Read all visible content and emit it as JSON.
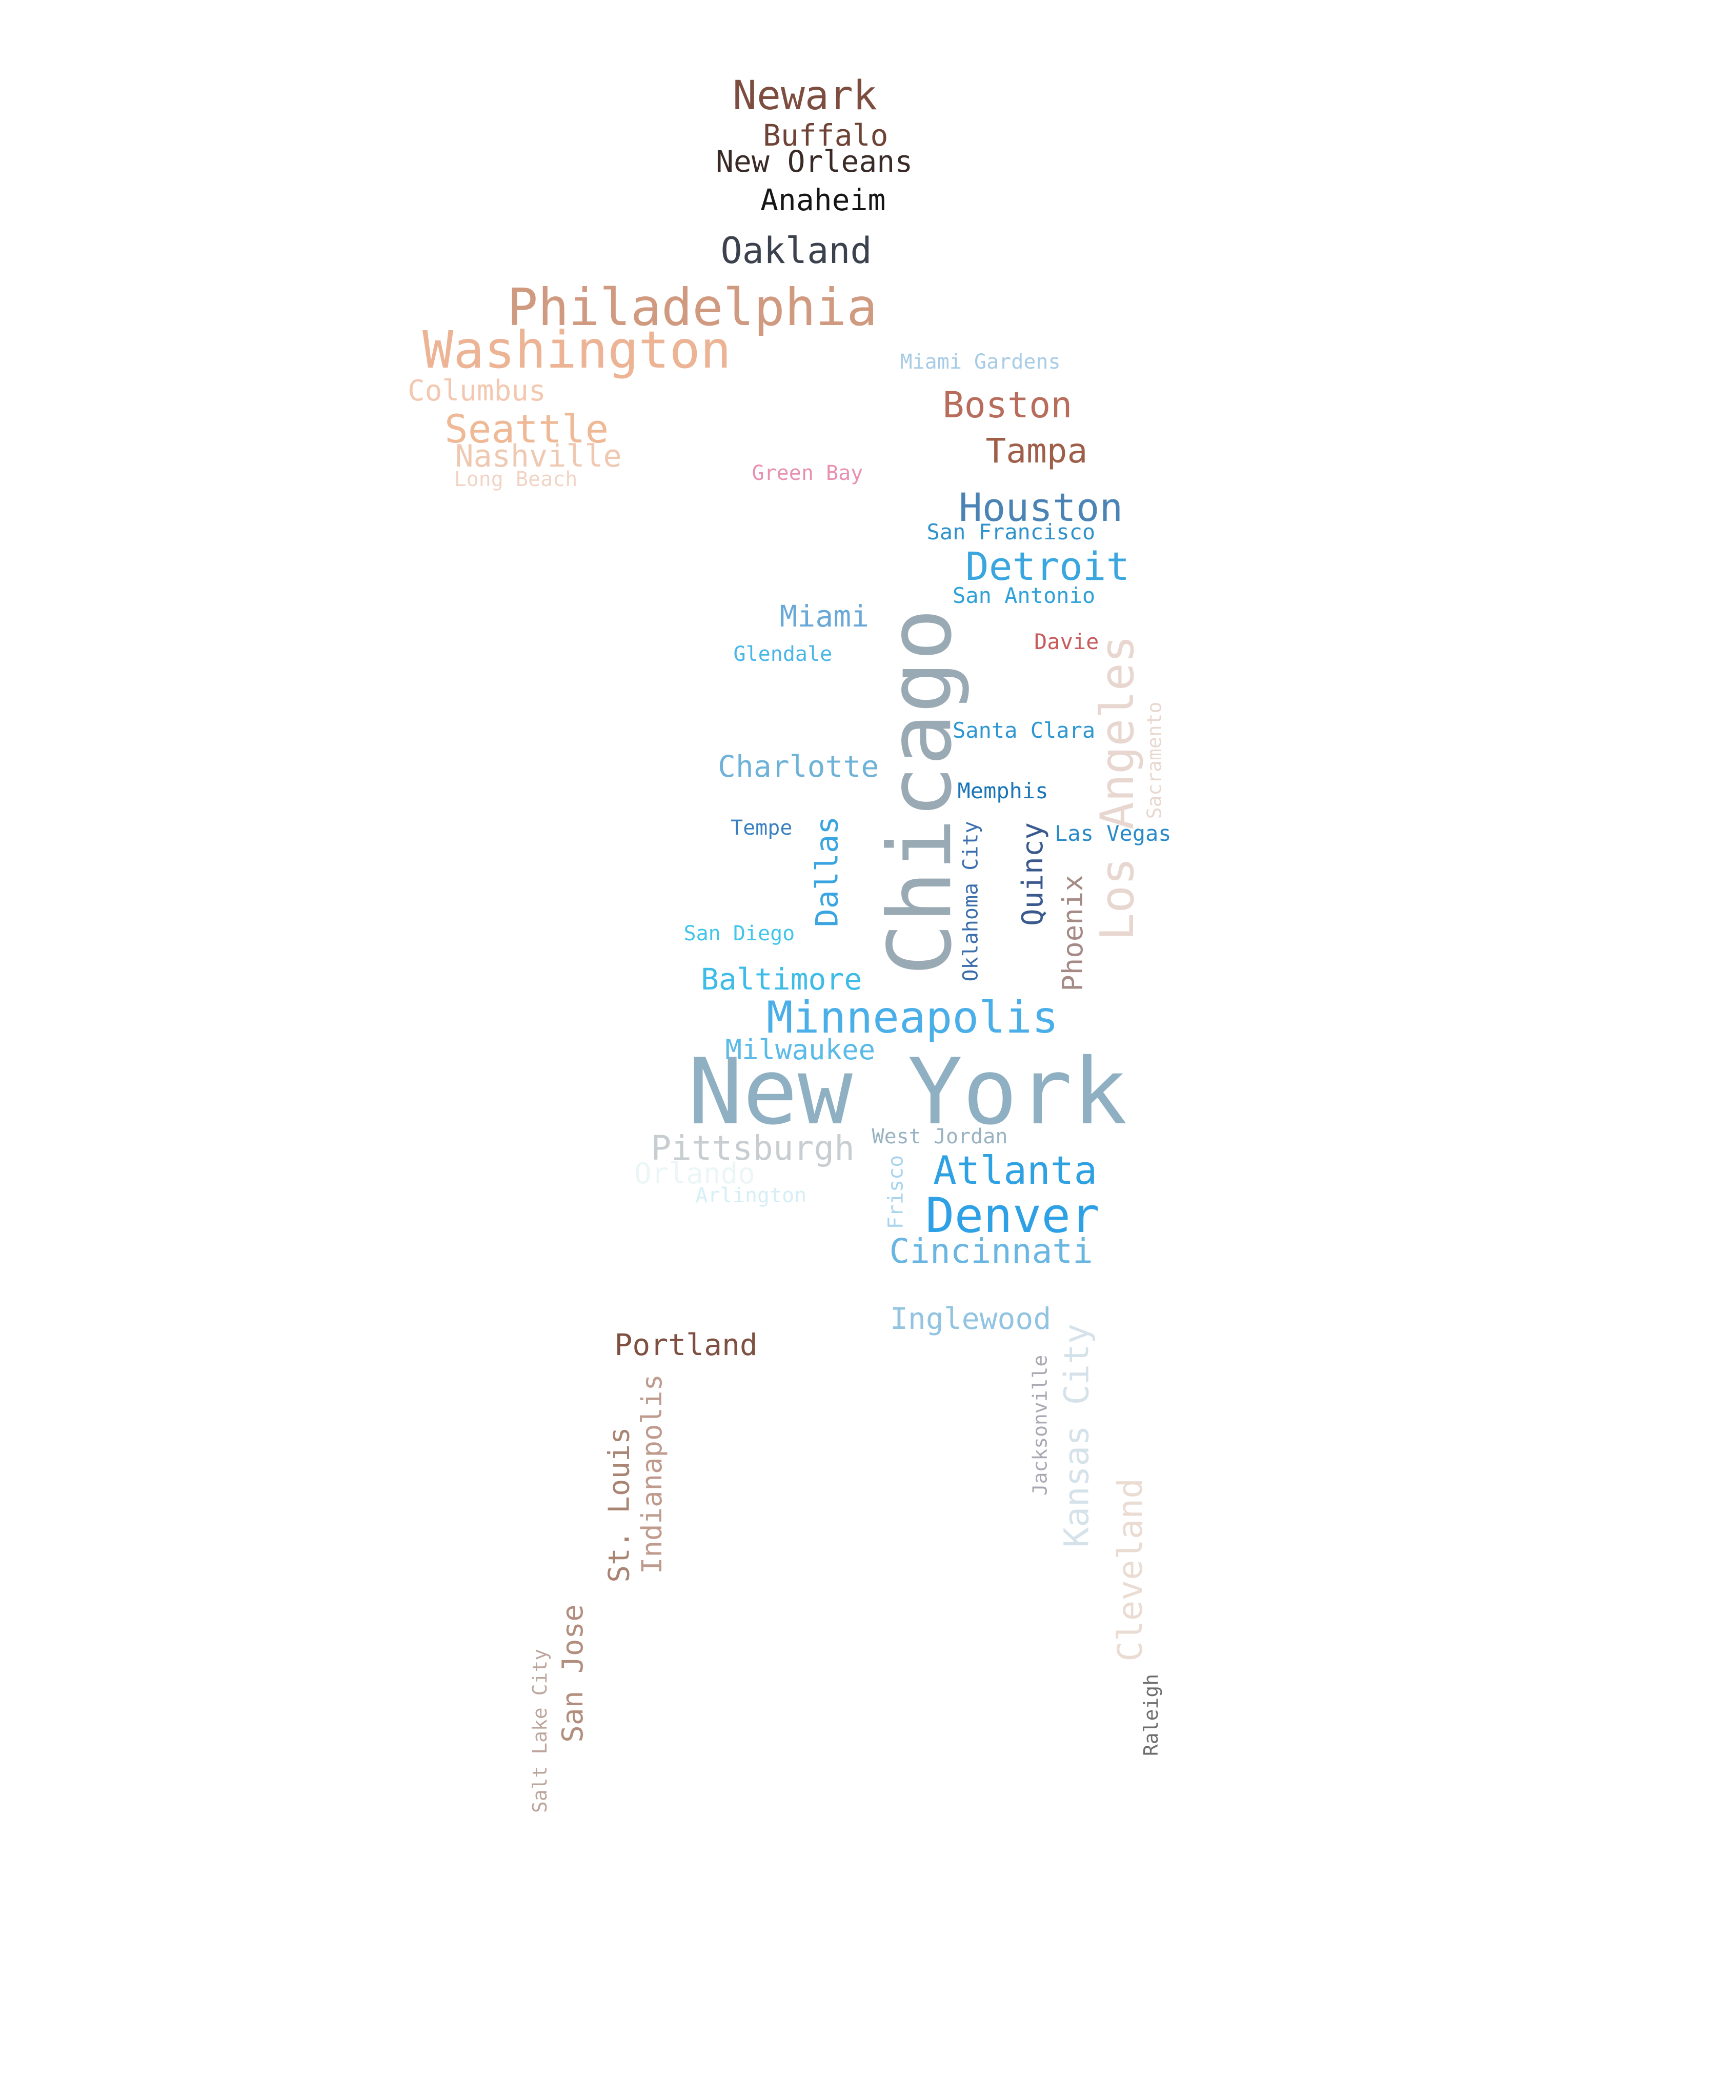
{
  "words": [
    {
      "text": "New York",
      "color": "#8fb0c2",
      "rot": 0
    },
    {
      "text": "Chicago",
      "color": "#9aaab4",
      "rot": -90
    },
    {
      "text": "Philadelphia",
      "color": "#d09a80",
      "rot": 0
    },
    {
      "text": "Washington",
      "color": "#ecb394",
      "rot": 0
    },
    {
      "text": "Los Angeles",
      "color": "#e8d7d0",
      "rot": -90
    },
    {
      "text": "Minneapolis",
      "color": "#4aaee8",
      "rot": 0
    },
    {
      "text": "Denver",
      "color": "#2ea1e6",
      "rot": 0
    },
    {
      "text": "Newark",
      "color": "#7d4e40",
      "rot": 0
    },
    {
      "text": "Houston",
      "color": "#4b84b4",
      "rot": 0
    },
    {
      "text": "Detroit",
      "color": "#3aa6e0",
      "rot": 0
    },
    {
      "text": "Atlanta",
      "color": "#2ea1e2",
      "rot": 0
    },
    {
      "text": "Oakland",
      "color": "#3c414e",
      "rot": 0
    },
    {
      "text": "Seattle",
      "color": "#efb996",
      "rot": 0
    },
    {
      "text": "Boston",
      "color": "#b86d5c",
      "rot": 0
    },
    {
      "text": "Cincinnati",
      "color": "#6ab6e2",
      "rot": 0
    },
    {
      "text": "Pittsburgh",
      "color": "#c7cdd0",
      "rot": 0
    },
    {
      "text": "Kansas City",
      "color": "#d6e2ea",
      "rot": -90
    },
    {
      "text": "Cleveland",
      "color": "#eadcd2",
      "rot": -90
    },
    {
      "text": "Tampa",
      "color": "#9e5e48",
      "rot": 0
    },
    {
      "text": "Charlotte",
      "color": "#6eb2d8",
      "rot": 0
    },
    {
      "text": "Baltimore",
      "color": "#3dbce8",
      "rot": 0
    },
    {
      "text": "Portland",
      "color": "#7e5042",
      "rot": 0
    },
    {
      "text": "Inglewood",
      "color": "#92c4e2",
      "rot": 0
    },
    {
      "text": "Dallas",
      "color": "#3aa5e0",
      "rot": -90
    },
    {
      "text": "Miami",
      "color": "#6aa8d8",
      "rot": 0
    },
    {
      "text": "Buffalo",
      "color": "#6e4234",
      "rot": 0
    },
    {
      "text": "New Orleans",
      "color": "#3a2a26",
      "rot": 0
    },
    {
      "text": "Anaheim",
      "color": "#151515",
      "rot": 0
    },
    {
      "text": "Milwaukee",
      "color": "#5abae8",
      "rot": 0
    },
    {
      "text": "Quincy",
      "color": "#3a5a8e",
      "rot": -90
    },
    {
      "text": "Phoenix",
      "color": "#a58a86",
      "rot": -90
    },
    {
      "text": "Indianapolis",
      "color": "#bf9b8e",
      "rot": -90
    },
    {
      "text": "St. Louis",
      "color": "#aa8472",
      "rot": -90
    },
    {
      "text": "San Jose",
      "color": "#b28e7e",
      "rot": -90
    },
    {
      "text": "Nashville",
      "color": "#efc8b2",
      "rot": 0
    },
    {
      "text": "Columbus",
      "color": "#f2c8b0",
      "rot": 0
    },
    {
      "text": "Orlando",
      "color": "#ecf6f6",
      "rot": 0
    },
    {
      "text": "San Francisco",
      "color": "#2e92cc",
      "rot": 0
    },
    {
      "text": "San Antonio",
      "color": "#2ea0d8",
      "rot": 0
    },
    {
      "text": "Santa Clara",
      "color": "#2e96d0",
      "rot": 0
    },
    {
      "text": "Memphis",
      "color": "#1a74b8",
      "rot": 0
    },
    {
      "text": "Las Vegas",
      "color": "#2a8ac8",
      "rot": 0
    },
    {
      "text": "Glendale",
      "color": "#48b6e6",
      "rot": 0
    },
    {
      "text": "Davie",
      "color": "#c65a5a",
      "rot": 0
    },
    {
      "text": "Tempe",
      "color": "#3a80c0",
      "rot": 0
    },
    {
      "text": "San Diego",
      "color": "#40c4ea",
      "rot": 0
    },
    {
      "text": "West Jordan",
      "color": "#98b2c2",
      "rot": 0
    },
    {
      "text": "Arlington",
      "color": "#d6eef6",
      "rot": 0
    },
    {
      "text": "Oklahoma City",
      "color": "#3a6eac",
      "rot": -90
    },
    {
      "text": "Sacramento",
      "color": "#e8d8d0",
      "rot": -90
    },
    {
      "text": "Miami Gardens",
      "color": "#a8cce6",
      "rot": 0
    },
    {
      "text": "Green Bay",
      "color": "#e890b0",
      "rot": 0
    },
    {
      "text": "Long Beach",
      "color": "#f2d4c6",
      "rot": 0
    },
    {
      "text": "Frisco",
      "color": "#a8d4ee",
      "rot": -90
    },
    {
      "text": "Jacksonville",
      "color": "#a8a8b2",
      "rot": -90
    },
    {
      "text": "Salt Lake City",
      "color": "#bca59c",
      "rot": -90
    },
    {
      "text": "Raleigh",
      "color": "#6e6e6e",
      "rot": -90
    }
  ]
}
